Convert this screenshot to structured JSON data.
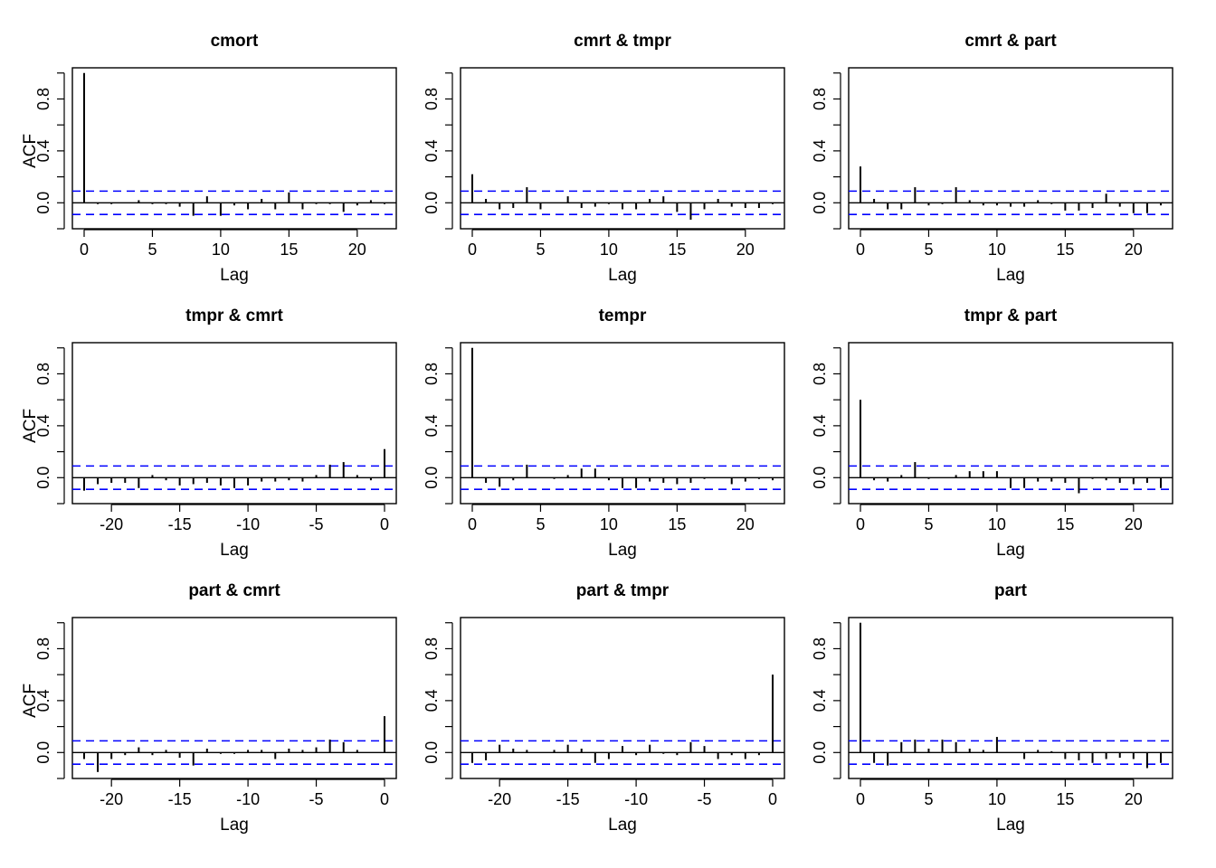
{
  "colors": {
    "ci_line": "#0000ff",
    "bar": "#000000",
    "frame": "#000000"
  },
  "chart_data": [
    {
      "type": "bar",
      "title": "cmort",
      "xlabel": "Lag",
      "ylabel": "ACF",
      "xlim": [
        0,
        22
      ],
      "ylim": [
        -0.2,
        1.0
      ],
      "ci": 0.09,
      "xticks": [
        0,
        5,
        10,
        15,
        20
      ],
      "yticks": [
        0.0,
        0.4,
        0.8
      ],
      "ytick_labels": [
        "0.0",
        "0.4",
        "0.8"
      ],
      "lags": [
        0,
        1,
        2,
        3,
        4,
        5,
        6,
        7,
        8,
        9,
        10,
        11,
        12,
        13,
        14,
        15,
        16,
        17,
        18,
        19,
        20,
        21,
        22
      ],
      "values": [
        1.0,
        -0.01,
        -0.01,
        0.0,
        0.02,
        -0.01,
        -0.01,
        -0.03,
        -0.1,
        0.05,
        -0.1,
        -0.02,
        -0.05,
        0.03,
        -0.05,
        0.08,
        -0.05,
        -0.01,
        -0.01,
        -0.07,
        -0.02,
        0.02,
        -0.01
      ]
    },
    {
      "type": "bar",
      "title": "cmrt & tmpr",
      "xlabel": "Lag",
      "ylabel": "",
      "xlim": [
        0,
        22
      ],
      "ylim": [
        -0.2,
        1.0
      ],
      "ci": 0.09,
      "xticks": [
        0,
        5,
        10,
        15,
        20
      ],
      "yticks": [
        0.0,
        0.4,
        0.8
      ],
      "ytick_labels": [
        "0.0",
        "0.4",
        "0.8"
      ],
      "lags": [
        0,
        1,
        2,
        3,
        4,
        5,
        6,
        7,
        8,
        9,
        10,
        11,
        12,
        13,
        14,
        15,
        16,
        17,
        18,
        19,
        20,
        21,
        22
      ],
      "values": [
        0.22,
        0.03,
        -0.05,
        -0.04,
        0.12,
        -0.05,
        0.0,
        0.05,
        -0.04,
        -0.03,
        -0.01,
        -0.05,
        -0.05,
        0.03,
        0.05,
        -0.07,
        -0.13,
        -0.05,
        0.03,
        -0.03,
        -0.04,
        -0.04,
        -0.01
      ]
    },
    {
      "type": "bar",
      "title": "cmrt & part",
      "xlabel": "Lag",
      "ylabel": "",
      "xlim": [
        0,
        22
      ],
      "ylim": [
        -0.2,
        1.0
      ],
      "ci": 0.09,
      "xticks": [
        0,
        5,
        10,
        15,
        20
      ],
      "yticks": [
        0.0,
        0.4,
        0.8
      ],
      "ytick_labels": [
        "0.0",
        "0.4",
        "0.8"
      ],
      "lags": [
        0,
        1,
        2,
        3,
        4,
        5,
        6,
        7,
        8,
        9,
        10,
        11,
        12,
        13,
        14,
        15,
        16,
        17,
        18,
        19,
        20,
        21,
        22
      ],
      "values": [
        0.28,
        0.03,
        -0.05,
        -0.05,
        0.12,
        -0.02,
        -0.01,
        0.12,
        0.02,
        -0.02,
        -0.02,
        -0.03,
        -0.03,
        0.02,
        -0.01,
        -0.06,
        -0.06,
        -0.04,
        0.07,
        -0.03,
        -0.08,
        -0.08,
        -0.02
      ]
    },
    {
      "type": "bar",
      "title": "tmpr & cmrt",
      "xlabel": "Lag",
      "ylabel": "ACF",
      "xlim": [
        -22,
        0
      ],
      "ylim": [
        -0.2,
        1.0
      ],
      "ci": 0.09,
      "xticks": [
        -20,
        -15,
        -10,
        -5,
        0
      ],
      "yticks": [
        0.0,
        0.4,
        0.8
      ],
      "ytick_labels": [
        "0.0",
        "0.4",
        "0.8"
      ],
      "lags": [
        -22,
        -21,
        -20,
        -19,
        -18,
        -17,
        -16,
        -15,
        -14,
        -13,
        -12,
        -11,
        -10,
        -9,
        -8,
        -7,
        -6,
        -5,
        -4,
        -3,
        -2,
        -1,
        0
      ],
      "values": [
        -0.1,
        -0.05,
        -0.04,
        -0.04,
        -0.08,
        0.02,
        -0.02,
        -0.06,
        -0.05,
        -0.04,
        -0.06,
        -0.08,
        -0.06,
        -0.03,
        -0.03,
        -0.02,
        -0.03,
        0.02,
        0.1,
        0.12,
        0.02,
        -0.02,
        0.22
      ]
    },
    {
      "type": "bar",
      "title": "tempr",
      "xlabel": "Lag",
      "ylabel": "",
      "xlim": [
        0,
        22
      ],
      "ylim": [
        -0.2,
        1.0
      ],
      "ci": 0.09,
      "xticks": [
        0,
        5,
        10,
        15,
        20
      ],
      "yticks": [
        0.0,
        0.4,
        0.8
      ],
      "ytick_labels": [
        "0.0",
        "0.4",
        "0.8"
      ],
      "lags": [
        0,
        1,
        2,
        3,
        4,
        5,
        6,
        7,
        8,
        9,
        10,
        11,
        12,
        13,
        14,
        15,
        16,
        17,
        18,
        19,
        20,
        21,
        22
      ],
      "values": [
        1.0,
        -0.04,
        -0.07,
        -0.02,
        0.1,
        0.0,
        -0.01,
        0.02,
        0.07,
        0.07,
        -0.02,
        -0.08,
        -0.08,
        -0.03,
        -0.04,
        -0.05,
        -0.04,
        -0.01,
        0.0,
        -0.05,
        -0.03,
        -0.01,
        -0.02
      ]
    },
    {
      "type": "bar",
      "title": "tmpr & part",
      "xlabel": "Lag",
      "ylabel": "",
      "xlim": [
        0,
        22
      ],
      "ylim": [
        -0.2,
        1.0
      ],
      "ci": 0.09,
      "xticks": [
        0,
        5,
        10,
        15,
        20
      ],
      "yticks": [
        0.0,
        0.4,
        0.8
      ],
      "ytick_labels": [
        "0.0",
        "0.4",
        "0.8"
      ],
      "lags": [
        0,
        1,
        2,
        3,
        4,
        5,
        6,
        7,
        8,
        9,
        10,
        11,
        12,
        13,
        14,
        15,
        16,
        17,
        18,
        19,
        20,
        21,
        22
      ],
      "values": [
        0.6,
        -0.02,
        -0.03,
        0.02,
        0.12,
        -0.01,
        0.0,
        0.02,
        0.05,
        0.05,
        0.05,
        -0.08,
        -0.08,
        -0.03,
        -0.03,
        -0.04,
        -0.12,
        -0.01,
        -0.02,
        -0.04,
        -0.05,
        -0.04,
        -0.08
      ]
    },
    {
      "type": "bar",
      "title": "part & cmrt",
      "xlabel": "Lag",
      "ylabel": "ACF",
      "xlim": [
        -22,
        0
      ],
      "ylim": [
        -0.2,
        1.0
      ],
      "ci": 0.09,
      "xticks": [
        -20,
        -15,
        -10,
        -5,
        0
      ],
      "yticks": [
        0.0,
        0.4,
        0.8
      ],
      "ytick_labels": [
        "0.0",
        "0.4",
        "0.8"
      ],
      "lags": [
        -22,
        -21,
        -20,
        -19,
        -18,
        -17,
        -16,
        -15,
        -14,
        -13,
        -12,
        -11,
        -10,
        -9,
        -8,
        -7,
        -6,
        -5,
        -4,
        -3,
        -2,
        -1,
        0
      ],
      "values": [
        -0.05,
        -0.15,
        -0.05,
        -0.02,
        0.04,
        -0.02,
        0.02,
        -0.04,
        -0.1,
        0.03,
        -0.01,
        -0.01,
        0.02,
        0.02,
        -0.05,
        0.03,
        0.02,
        0.04,
        0.1,
        0.08,
        0.02,
        0.0,
        0.28
      ]
    },
    {
      "type": "bar",
      "title": "part & tmpr",
      "xlabel": "Lag",
      "ylabel": "",
      "xlim": [
        -22,
        0
      ],
      "ylim": [
        -0.2,
        1.0
      ],
      "ci": 0.09,
      "xticks": [
        -20,
        -15,
        -10,
        -5,
        0
      ],
      "yticks": [
        0.0,
        0.4,
        0.8
      ],
      "ytick_labels": [
        "0.0",
        "0.4",
        "0.8"
      ],
      "lags": [
        -22,
        -21,
        -20,
        -19,
        -18,
        -17,
        -16,
        -15,
        -14,
        -13,
        -12,
        -11,
        -10,
        -9,
        -8,
        -7,
        -6,
        -5,
        -4,
        -3,
        -2,
        -1,
        0
      ],
      "values": [
        -0.08,
        -0.06,
        0.06,
        0.03,
        0.02,
        0.0,
        0.02,
        0.06,
        0.03,
        -0.08,
        -0.05,
        0.05,
        -0.02,
        0.06,
        -0.01,
        -0.02,
        0.08,
        0.05,
        -0.05,
        -0.02,
        -0.05,
        -0.02,
        0.6
      ]
    },
    {
      "type": "bar",
      "title": "part",
      "xlabel": "Lag",
      "ylabel": "",
      "xlim": [
        0,
        22
      ],
      "ylim": [
        -0.2,
        1.0
      ],
      "ci": 0.09,
      "xticks": [
        0,
        5,
        10,
        15,
        20
      ],
      "yticks": [
        0.0,
        0.4,
        0.8
      ],
      "ytick_labels": [
        "0.0",
        "0.4",
        "0.8"
      ],
      "lags": [
        0,
        1,
        2,
        3,
        4,
        5,
        6,
        7,
        8,
        9,
        10,
        11,
        12,
        13,
        14,
        15,
        16,
        17,
        18,
        19,
        20,
        21,
        22
      ],
      "values": [
        1.0,
        -0.08,
        -0.1,
        0.08,
        0.1,
        0.03,
        0.1,
        0.08,
        0.03,
        0.02,
        0.12,
        0.0,
        -0.05,
        0.02,
        0.01,
        -0.05,
        -0.06,
        -0.08,
        -0.05,
        -0.04,
        -0.05,
        -0.12,
        -0.08
      ]
    }
  ]
}
